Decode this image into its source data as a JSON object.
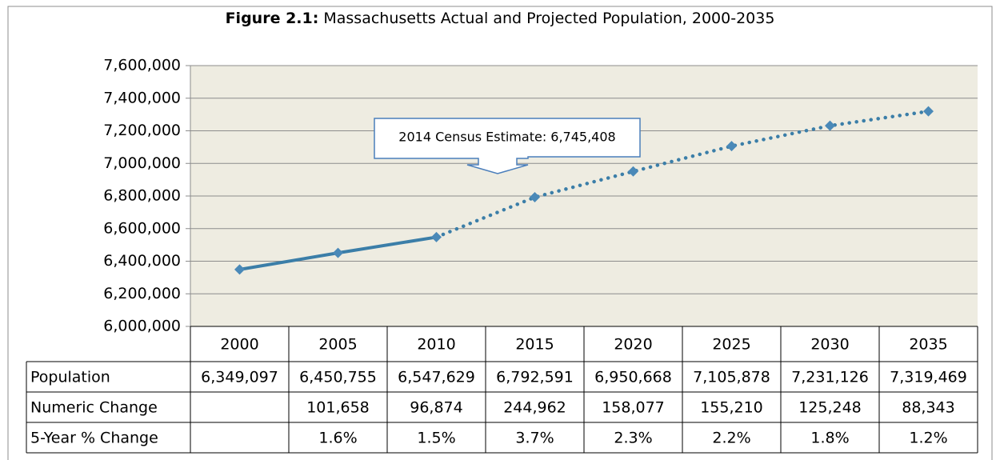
{
  "chart_data": {
    "type": "line",
    "title_label": "Figure 2.1:",
    "title": "Massachusetts Actual and Projected Population, 2000-2035",
    "categories": [
      "2000",
      "2005",
      "2010",
      "2015",
      "2020",
      "2025",
      "2030",
      "2035"
    ],
    "projected_from": "2010",
    "series": [
      {
        "name": "Population",
        "color": "#3b7ea8",
        "values": [
          6349097,
          6450755,
          6547629,
          6792591,
          6950668,
          7105878,
          7231126,
          7319469
        ],
        "value_labels": [
          "6,349,097",
          "6,450,755",
          "6,547,629",
          "6,792,591",
          "6,950,668",
          "7,105,878",
          "7,231,126",
          "7,319,469"
        ]
      }
    ],
    "table_rows": [
      {
        "name": "Numeric Change",
        "values": [
          null,
          "101,658",
          "96,874",
          "244,962",
          "158,077",
          "155,210",
          "125,248",
          "88,343"
        ]
      },
      {
        "name": "5-Year % Change",
        "values": [
          null,
          "1.6%",
          "1.5%",
          "3.7%",
          "2.3%",
          "2.2%",
          "1.8%",
          "1.2%"
        ]
      }
    ],
    "annotation": "2014 Census Estimate: 6,745,408",
    "ylim": [
      6000000,
      7600000
    ],
    "yticks": [
      {
        "value": 6000000,
        "label": "6,000,000"
      },
      {
        "value": 6200000,
        "label": "6,200,000"
      },
      {
        "value": 6400000,
        "label": "6,400,000"
      },
      {
        "value": 6600000,
        "label": "6,600,000"
      },
      {
        "value": 6800000,
        "label": "6,800,000"
      },
      {
        "value": 7000000,
        "label": "7,000,000"
      },
      {
        "value": 7200000,
        "label": "7,200,000"
      },
      {
        "value": 7400000,
        "label": "7,400,000"
      },
      {
        "value": 7600000,
        "label": "7,600,000"
      }
    ],
    "grid": true
  }
}
